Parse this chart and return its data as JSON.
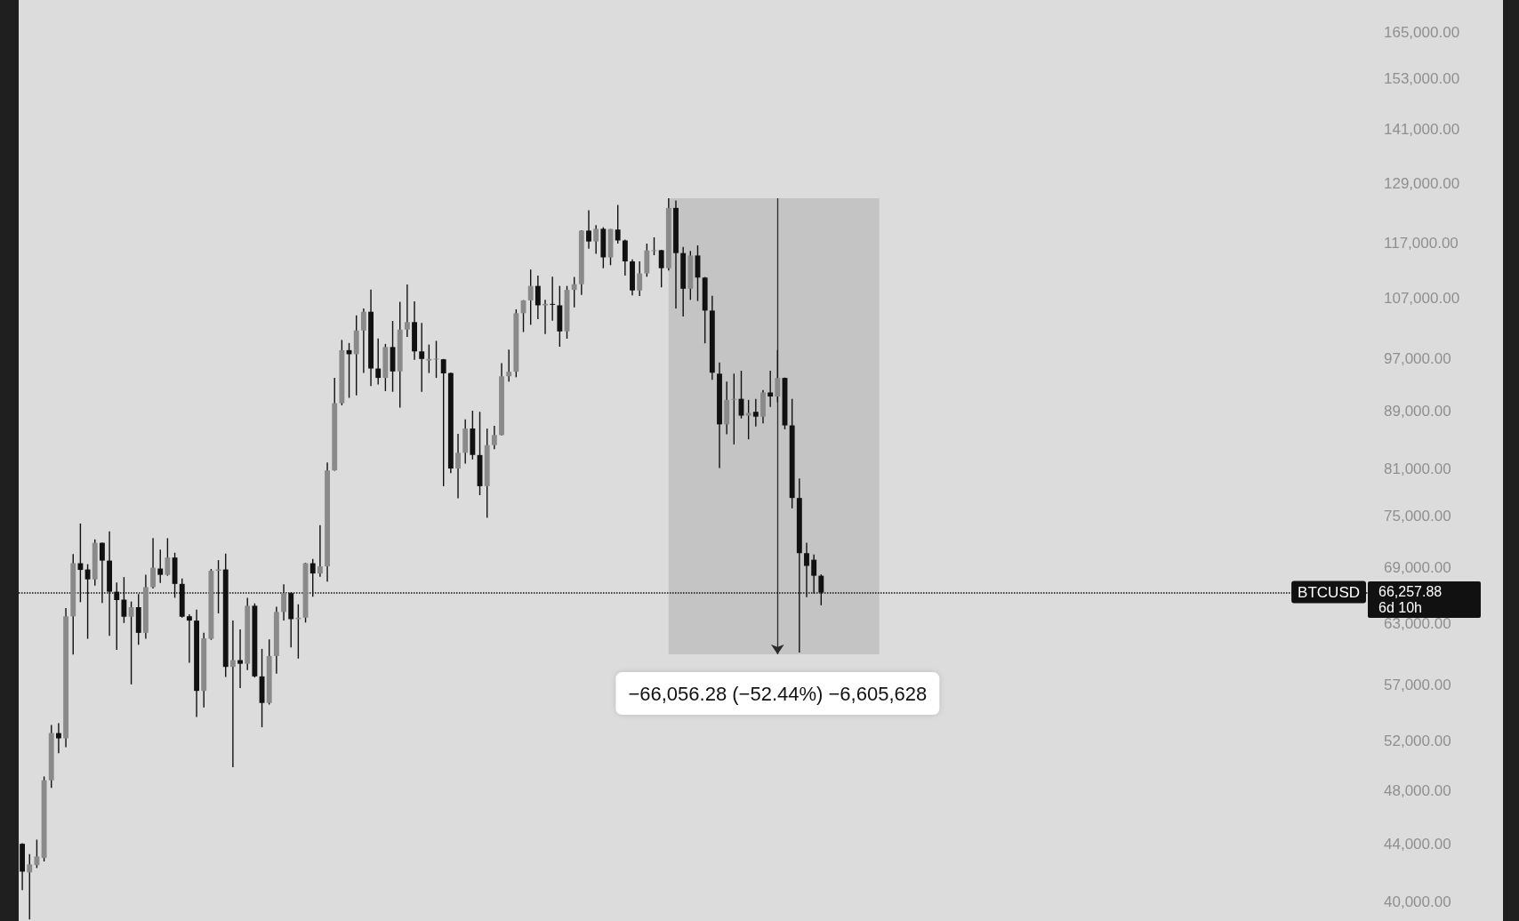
{
  "chart_data": {
    "type": "candlestick",
    "categories": [
      null,
      null,
      null,
      null,
      null,
      null,
      null,
      null,
      null,
      null,
      null,
      null,
      null,
      null,
      null,
      null,
      null,
      null,
      null,
      null,
      null,
      null,
      null,
      null,
      null,
      null,
      null,
      null,
      null,
      null,
      null,
      null,
      null,
      null,
      null,
      null,
      null,
      null,
      null,
      null,
      null,
      null,
      null,
      null,
      null,
      null,
      null,
      null,
      null,
      null,
      null,
      null,
      null,
      null,
      null,
      null,
      null,
      null,
      null,
      null,
      null,
      null,
      null,
      null,
      null,
      null,
      null,
      null,
      null,
      null,
      null,
      null,
      null,
      null,
      null,
      null,
      null,
      null,
      null,
      null,
      null,
      null,
      null,
      null,
      null,
      null,
      null,
      null,
      null,
      null,
      null,
      null,
      null,
      null,
      null,
      null,
      null,
      null,
      null,
      null,
      null,
      null,
      null,
      null,
      null,
      null,
      null,
      null,
      null,
      null,
      null,
      null,
      null,
      null,
      null,
      null,
      null,
      null,
      null,
      null,
      null,
      null,
      null,
      null,
      null,
      null,
      null,
      null,
      null,
      null,
      null,
      null,
      null,
      null,
      null,
      null,
      null,
      null,
      null,
      null,
      null,
      null,
      null,
      null,
      null,
      null,
      null,
      null,
      null,
      null,
      null,
      null,
      null,
      null,
      null,
      null,
      null,
      null,
      null,
      null,
      null,
      null,
      null,
      null,
      null,
      null,
      null,
      null,
      null,
      null,
      null,
      null,
      null,
      null,
      null,
      null,
      null,
      null,
      null,
      null,
      null,
      null,
      null,
      null,
      null,
      null,
      null
    ],
    "ohlc": [
      [
        44000,
        44050,
        40800,
        42050
      ],
      [
        42000,
        43270,
        38900,
        42550
      ],
      [
        42500,
        44300,
        42300,
        43100
      ],
      [
        43000,
        49100,
        42750,
        48800
      ],
      [
        48800,
        53400,
        48200,
        52700
      ],
      [
        52700,
        53550,
        51000,
        52250
      ],
      [
        52250,
        64600,
        51500,
        63750
      ],
      [
        63750,
        70550,
        59900,
        69500
      ],
      [
        69500,
        74150,
        65230,
        68750
      ],
      [
        68800,
        69400,
        61450,
        67700
      ],
      [
        67700,
        72250,
        67000,
        71850
      ],
      [
        71850,
        71900,
        65150,
        69800
      ],
      [
        69800,
        73200,
        61750,
        66350
      ],
      [
        66350,
        67350,
        60350,
        65450
      ],
      [
        65500,
        67950,
        63050,
        63700
      ],
      [
        63700,
        65300,
        57050,
        64700
      ],
      [
        64700,
        66100,
        60850,
        62050
      ],
      [
        62050,
        68200,
        61450,
        66850
      ],
      [
        66850,
        72400,
        66700,
        69000
      ],
      [
        68900,
        71050,
        67300,
        68200
      ],
      [
        68200,
        72400,
        68100,
        70150
      ],
      [
        70150,
        70700,
        65700,
        67200
      ],
      [
        67200,
        67800,
        63600,
        63700
      ],
      [
        63750,
        63950,
        59100,
        63300
      ],
      [
        63300,
        64450,
        54100,
        56450
      ],
      [
        56450,
        62050,
        54950,
        61500
      ],
      [
        61450,
        68850,
        61350,
        68650
      ],
      [
        68650,
        69850,
        64050,
        68800
      ],
      [
        68800,
        70600,
        57750,
        58700
      ],
      [
        58700,
        63300,
        49850,
        59350
      ],
      [
        59350,
        62400,
        56700,
        59000
      ],
      [
        59000,
        65700,
        58400,
        64850
      ],
      [
        64850,
        65100,
        57700,
        57800
      ],
      [
        57800,
        60450,
        53200,
        55350
      ],
      [
        55350,
        61400,
        55200,
        59750
      ],
      [
        59750,
        64750,
        58050,
        64200
      ],
      [
        64200,
        67150,
        63300,
        66200
      ],
      [
        66200,
        66300,
        60600,
        63450
      ],
      [
        63450,
        65000,
        59500,
        63600
      ],
      [
        63600,
        69550,
        63100,
        69500
      ],
      [
        69500,
        70000,
        65800,
        68350
      ],
      [
        68350,
        73950,
        68000,
        69150
      ],
      [
        69150,
        81900,
        67450,
        80850
      ],
      [
        80850,
        94000,
        80800,
        90200
      ],
      [
        90200,
        100000,
        89900,
        98350
      ],
      [
        98350,
        99500,
        91000,
        97700
      ],
      [
        97700,
        104100,
        91350,
        101550
      ],
      [
        101550,
        105250,
        94750,
        104700
      ],
      [
        104700,
        108550,
        92750,
        95450
      ],
      [
        95450,
        100250,
        93000,
        94000
      ],
      [
        94000,
        99350,
        92000,
        98850
      ],
      [
        98850,
        103150,
        91900,
        95000
      ],
      [
        95000,
        106400,
        89550,
        101700
      ],
      [
        101700,
        109450,
        100500,
        102950
      ],
      [
        102950,
        106500,
        96800,
        98150
      ],
      [
        98150,
        102800,
        91900,
        96950
      ],
      [
        96700,
        99250,
        94750,
        96950
      ],
      [
        96900,
        99850,
        94000,
        97000
      ],
      [
        96900,
        96950,
        78800,
        94700
      ],
      [
        94750,
        94850,
        80500,
        81100
      ],
      [
        81100,
        85800,
        77250,
        83200
      ],
      [
        83200,
        87850,
        81750,
        86550
      ],
      [
        86550,
        89100,
        82300,
        82900
      ],
      [
        82900,
        88950,
        77650,
        78800
      ],
      [
        78800,
        86550,
        74850,
        84250
      ],
      [
        84250,
        86950,
        83700,
        85650
      ],
      [
        85650,
        96300,
        85600,
        94250
      ],
      [
        94250,
        98450,
        93450,
        94950
      ],
      [
        94950,
        105100,
        94100,
        104450
      ],
      [
        104450,
        106700,
        101300,
        106650
      ],
      [
        106650,
        112150,
        102500,
        109200
      ],
      [
        109200,
        111050,
        103450,
        105800
      ],
      [
        105800,
        106750,
        100950,
        106050
      ],
      [
        106050,
        110850,
        103200,
        106000
      ],
      [
        105800,
        109200,
        98900,
        101400
      ],
      [
        101400,
        109200,
        100200,
        108500
      ],
      [
        108500,
        110800,
        105450,
        109500
      ],
      [
        109500,
        119550,
        107600,
        119500
      ],
      [
        119500,
        123550,
        116050,
        117400
      ],
      [
        117400,
        120550,
        115050,
        119850
      ],
      [
        119850,
        120150,
        112400,
        114400
      ],
      [
        114400,
        119800,
        112950,
        119800
      ],
      [
        119700,
        124600,
        117000,
        117600
      ],
      [
        117600,
        117750,
        111050,
        113650
      ],
      [
        113650,
        114050,
        107550,
        108400
      ],
      [
        108400,
        113650,
        107400,
        111450
      ],
      [
        111450,
        117000,
        110850,
        115700
      ],
      [
        115650,
        118200,
        114800,
        115750
      ],
      [
        115750,
        115800,
        108950,
        112400
      ],
      [
        112400,
        125965,
        112000,
        124000
      ],
      [
        124000,
        125500,
        105250,
        115200
      ],
      [
        115200,
        116350,
        103900,
        108700
      ],
      [
        108700,
        115600,
        106750,
        114750
      ],
      [
        114750,
        116650,
        106550,
        110700
      ],
      [
        110700,
        110800,
        99450,
        104900
      ],
      [
        104900,
        107450,
        93700,
        94800
      ],
      [
        94650,
        96400,
        81150,
        87150
      ],
      [
        87150,
        93450,
        85750,
        90700
      ],
      [
        90700,
        94650,
        84350,
        90850
      ],
      [
        90850,
        95100,
        88000,
        88400
      ],
      [
        88400,
        90700,
        85050,
        88800
      ],
      [
        88950,
        90850,
        86850,
        88250
      ],
      [
        88250,
        92150,
        87300,
        91800
      ],
      [
        91800,
        95100,
        89650,
        91200
      ],
      [
        91200,
        98350,
        90350,
        94000
      ],
      [
        94000,
        94050,
        86450,
        87000
      ],
      [
        87000,
        90850,
        76000,
        77300
      ],
      [
        77300,
        79800,
        60100,
        70650
      ],
      [
        70650,
        71850,
        65750,
        69200
      ],
      [
        69900,
        70500,
        66150,
        68100
      ],
      [
        68100,
        68250,
        64900,
        66260
      ],
      null,
      null,
      null,
      null,
      null,
      null,
      null,
      null,
      null,
      null,
      null,
      null,
      null,
      null,
      null,
      null,
      null,
      null,
      null,
      null,
      null,
      null,
      null,
      null,
      null,
      null,
      null,
      null,
      null,
      null,
      null,
      null,
      null,
      null,
      null,
      null,
      null,
      null,
      null,
      null,
      null,
      null,
      null,
      null,
      null,
      null,
      null,
      null,
      null,
      null,
      null,
      null,
      null,
      null,
      null,
      null,
      null,
      null,
      null,
      null,
      null,
      null,
      null,
      null,
      null,
      null,
      null,
      null,
      null,
      null,
      null,
      null,
      null,
      null,
      null,
      null
    ],
    "colors": [
      "#111111",
      "#8a8a8a",
      "#8a8a8a",
      "#8a8a8a",
      "#8a8a8a",
      "#111111",
      "#8a8a8a",
      "#8a8a8a",
      "#111111",
      "#111111",
      "#8a8a8a",
      "#111111",
      "#111111",
      "#111111",
      "#111111",
      "#8a8a8a",
      "#111111",
      "#8a8a8a",
      "#8a8a8a",
      "#111111",
      "#8a8a8a",
      "#111111",
      "#111111",
      "#111111",
      "#111111",
      "#8a8a8a",
      "#8a8a8a",
      "#8a8a8a",
      "#111111",
      "#8a8a8a",
      "#111111",
      "#8a8a8a",
      "#111111",
      "#111111",
      "#8a8a8a",
      "#8a8a8a",
      "#8a8a8a",
      "#111111",
      "#8a8a8a",
      "#8a8a8a",
      "#111111",
      "#8a8a8a",
      "#8a8a8a",
      "#8a8a8a",
      "#8a8a8a",
      "#111111",
      "#8a8a8a",
      "#8a8a8a",
      "#111111",
      "#111111",
      "#8a8a8a",
      "#111111",
      "#8a8a8a",
      "#8a8a8a",
      "#111111",
      "#111111",
      "#8a8a8a",
      "#8a8a8a",
      "#111111",
      "#111111",
      "#8a8a8a",
      "#8a8a8a",
      "#111111",
      "#111111",
      "#8a8a8a",
      "#8a8a8a",
      "#8a8a8a",
      "#8a8a8a",
      "#8a8a8a",
      "#8a8a8a",
      "#8a8a8a",
      "#111111",
      "#8a8a8a",
      "#111111",
      "#111111",
      "#8a8a8a",
      "#8a8a8a",
      "#8a8a8a",
      "#111111",
      "#8a8a8a",
      "#111111",
      "#8a8a8a",
      "#111111",
      "#111111",
      "#111111",
      "#8a8a8a",
      "#8a8a8a",
      "#8a8a8a",
      "#111111",
      "#8a8a8a",
      "#111111",
      "#111111",
      "#8a8a8a",
      "#111111",
      "#111111",
      "#111111",
      "#111111",
      "#8a8a8a",
      "#8a8a8a",
      "#111111",
      "#8a8a8a",
      "#111111",
      "#8a8a8a",
      "#111111",
      "#8a8a8a",
      "#111111",
      "#111111",
      "#111111",
      "#111111",
      "#111111",
      "#111111",
      null,
      null,
      null,
      null,
      null,
      null,
      null,
      null,
      null,
      null,
      null,
      null,
      null,
      null,
      null,
      null,
      null,
      null,
      null,
      null,
      null,
      null,
      null,
      null,
      null,
      null,
      null,
      null,
      null,
      null,
      null,
      null,
      null,
      null,
      null,
      null,
      null,
      null,
      null,
      null,
      null,
      null,
      null,
      null,
      null,
      null,
      null,
      null,
      null,
      null,
      null,
      null,
      null,
      null,
      null,
      null,
      null,
      null,
      null,
      null,
      null,
      null,
      null,
      null,
      null,
      null,
      null,
      null,
      null,
      null,
      null,
      null,
      null,
      null,
      null,
      null
    ],
    "log": true,
    "ylim": [
      38800,
      174000
    ],
    "yticks": [
      {
        "value": 40000,
        "label": "40,000.00"
      },
      {
        "value": 44000,
        "label": "44,000.00"
      },
      {
        "value": 48000,
        "label": "48,000.00"
      },
      {
        "value": 52000,
        "label": "52,000.00"
      },
      {
        "value": 57000,
        "label": "57,000.00"
      },
      {
        "value": 63000,
        "label": "63,000.00"
      },
      {
        "value": 69000,
        "label": "69,000.00"
      },
      {
        "value": 75000,
        "label": "75,000.00"
      },
      {
        "value": 81000,
        "label": "81,000.00"
      },
      {
        "value": 89000,
        "label": "89,000.00"
      },
      {
        "value": 97000,
        "label": "97,000.00"
      },
      {
        "value": 107000,
        "label": "107,000.00"
      },
      {
        "value": 117000,
        "label": "117,000.00"
      },
      {
        "value": 129000,
        "label": "129,000.00"
      },
      {
        "value": 141000,
        "label": "141,000.00"
      },
      {
        "value": 153000,
        "label": "153,000.00"
      },
      {
        "value": 165000,
        "label": "165,000.00"
      }
    ],
    "tick_labels": "y",
    "ref_lines": [
      {
        "axis": "y",
        "value": 66257.88,
        "label": "BTCUSD",
        "color": "#111111",
        "line_style": "dotted"
      }
    ],
    "bands": [
      {
        "axis": "y",
        "from": 59909,
        "to": 125965,
        "color": "#c4c4c4"
      }
    ],
    "annotations": [
      {
        "text": "−66,056.28 (−52.44%) −6,605,628",
        "y": 59909
      },
      "66,257.88",
      "6d 10h"
    ]
  }
}
